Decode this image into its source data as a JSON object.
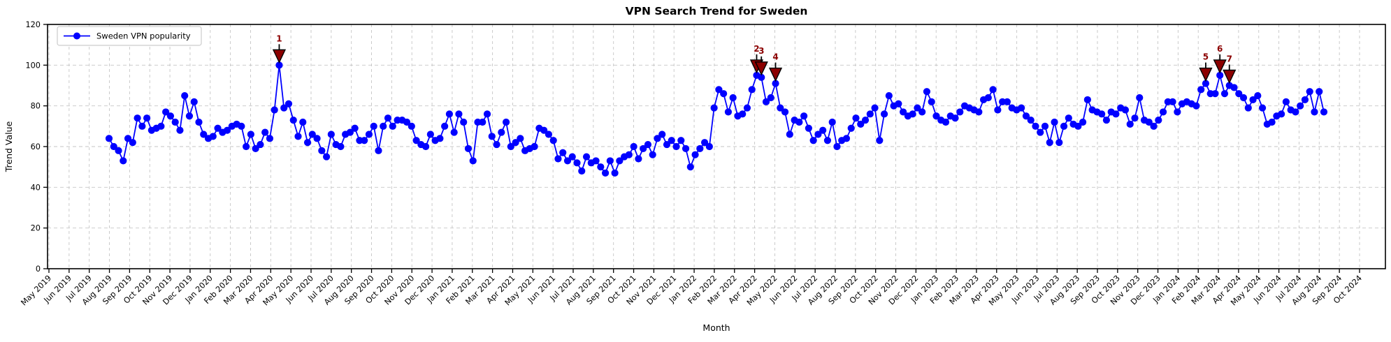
{
  "chart_data": {
    "type": "line",
    "title": "VPN Search Trend for Sweden",
    "xlabel": "Month",
    "ylabel": "Trend Value",
    "ylim": [
      0,
      120
    ],
    "yticks": [
      0,
      20,
      40,
      60,
      80,
      100,
      120
    ],
    "grid": true,
    "x_tick_labels": [
      "May 2019",
      "Jun 2019",
      "Jul 2019",
      "Aug 2019",
      "Sep 2019",
      "Oct 2019",
      "Nov 2019",
      "Dec 2019",
      "Jan 2020",
      "Feb 2020",
      "Mar 2020",
      "Apr 2020",
      "May 2020",
      "Jun 2020",
      "Jul 2020",
      "Aug 2020",
      "Sep 2020",
      "Oct 2020",
      "Nov 2020",
      "Dec 2020",
      "Jan 2021",
      "Feb 2021",
      "Mar 2021",
      "Apr 2021",
      "May 2021",
      "Jun 2021",
      "Jul 2021",
      "Aug 2021",
      "Sep 2021",
      "Oct 2021",
      "Nov 2021",
      "Dec 2021",
      "Jan 2022",
      "Feb 2022",
      "Mar 2022",
      "Apr 2022",
      "May 2022",
      "Jun 2022",
      "Jul 2022",
      "Aug 2022",
      "Sep 2022",
      "Oct 2022",
      "Nov 2022",
      "Dec 2022",
      "Jan 2023",
      "Feb 2023",
      "Mar 2023",
      "Apr 2023",
      "May 2023",
      "Jun 2023",
      "Jul 2023",
      "Aug 2023",
      "Sep 2023",
      "Oct 2023",
      "Nov 2023",
      "Dec 2023",
      "Jan 2024",
      "Feb 2024",
      "Mar 2024",
      "Apr 2024",
      "May 2024",
      "Jun 2024",
      "Jul 2024",
      "Aug 2024",
      "Sep 2024",
      "Oct 2024"
    ],
    "legend": {
      "position": "upper-left",
      "entries": [
        {
          "label": "Sweden VPN popularity",
          "color": "#0000ff",
          "marker": "circle"
        }
      ]
    },
    "series": [
      {
        "name": "Sweden VPN popularity",
        "color": "#0000ff",
        "cadence": "weekly",
        "start_label": "Aug 2019",
        "end_label": "Aug 2024",
        "values": [
          64,
          60,
          58,
          53,
          64,
          62,
          74,
          70,
          74,
          68,
          69,
          70,
          77,
          75,
          72,
          68,
          85,
          75,
          82,
          72,
          66,
          64,
          65,
          69,
          67,
          68,
          70,
          71,
          70,
          60,
          66,
          59,
          61,
          67,
          64,
          78,
          100,
          79,
          81,
          73,
          65,
          72,
          62,
          66,
          64,
          58,
          55,
          66,
          61,
          60,
          66,
          67,
          69,
          63,
          63,
          66,
          70,
          58,
          70,
          74,
          70,
          73,
          73,
          72,
          70,
          63,
          61,
          60,
          66,
          63,
          64,
          70,
          76,
          67,
          76,
          72,
          59,
          53,
          72,
          72,
          76,
          65,
          61,
          67,
          72,
          60,
          62,
          64,
          58,
          59,
          60,
          69,
          68,
          66,
          63,
          54,
          57,
          53,
          55,
          52,
          48,
          55,
          52,
          53,
          50,
          47,
          53,
          47,
          53,
          55,
          56,
          60,
          54,
          59,
          61,
          56,
          64,
          66,
          61,
          63,
          60,
          63,
          59,
          50,
          56,
          59,
          62,
          60,
          79,
          88,
          86,
          77,
          84,
          75,
          76,
          79,
          88,
          95,
          94,
          82,
          84,
          91,
          79,
          77,
          66,
          73,
          72,
          75,
          69,
          63,
          66,
          68,
          63,
          72,
          60,
          63,
          64,
          69,
          74,
          71,
          73,
          76,
          79,
          63,
          76,
          85,
          80,
          81,
          77,
          75,
          76,
          79,
          77,
          87,
          82,
          75,
          73,
          72,
          75,
          74,
          77,
          80,
          79,
          78,
          77,
          83,
          84,
          88,
          78,
          82,
          82,
          79,
          78,
          79,
          75,
          73,
          70,
          67,
          70,
          62,
          72,
          62,
          70,
          74,
          71,
          70,
          72,
          83,
          78,
          77,
          76,
          73,
          77,
          76,
          79,
          78,
          71,
          74,
          84,
          73,
          72,
          70,
          73,
          77,
          82,
          82,
          77,
          81,
          82,
          81,
          80,
          88,
          91,
          86,
          86,
          95,
          86,
          90,
          89,
          86,
          84,
          79,
          83,
          85,
          79,
          71,
          72,
          75,
          76,
          82,
          78,
          77,
          80,
          83,
          87,
          77,
          87,
          77
        ]
      }
    ],
    "annotations": [
      {
        "label": "1",
        "index": 36,
        "value": 100
      },
      {
        "label": "2",
        "index": 137,
        "value": 95
      },
      {
        "label": "3",
        "index": 138,
        "value": 94
      },
      {
        "label": "4",
        "index": 141,
        "value": 91
      },
      {
        "label": "5",
        "index": 232,
        "value": 91
      },
      {
        "label": "6",
        "index": 235,
        "value": 95
      },
      {
        "label": "7",
        "index": 237,
        "value": 90
      }
    ],
    "annotation_style": {
      "marker": "triangle-down",
      "fill": "#8b0000",
      "edge": "#000000",
      "text_color": "#8b0000"
    },
    "colors": {
      "line": "#0000ff",
      "grid": "#c5c5c5",
      "spine": "#000000",
      "background": "#ffffff"
    }
  }
}
